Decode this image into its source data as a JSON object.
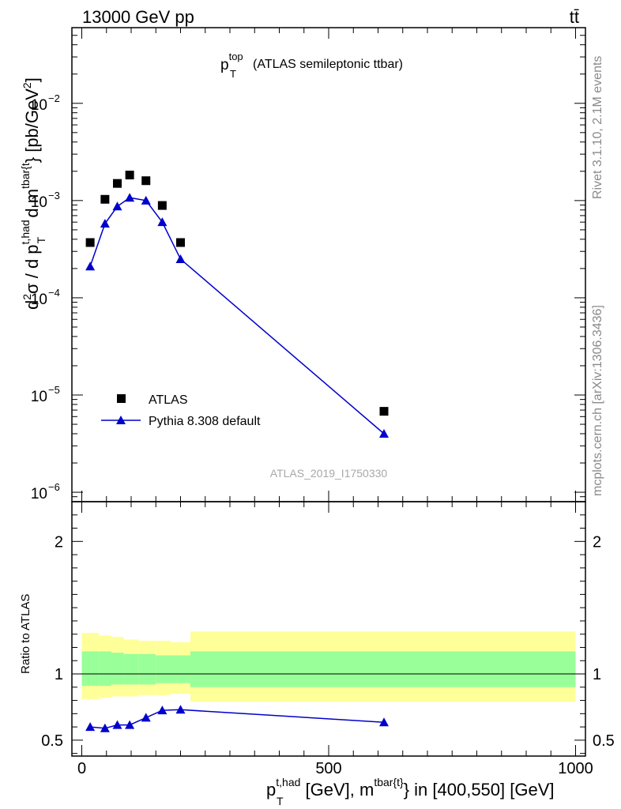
{
  "header": {
    "energy_label": "13000 GeV pp",
    "process_label": "tt̄"
  },
  "side_labels": {
    "rivet": "Rivet 3.1.10,  2.1M events",
    "mcplots": "mcplots.cern.ch [arXiv:1306.3436]"
  },
  "analysis_id": "ATLAS_2019_I1750330",
  "chart_data": [
    {
      "type": "scatter",
      "panel": "main",
      "title": {
        "main": "p",
        "sup": "top",
        "sub": "T",
        "rest": "(ATLAS semileptonic ttbar)"
      },
      "ylabel": "d²σ / d p_T^{t,had} d m^{tbar{t}} [pb/GeV²]",
      "yscale": "log",
      "xlim": [
        -20,
        1020
      ],
      "ylim": [
        8e-07,
        0.06
      ],
      "ytick_labels": [
        {
          "value": 1e-06,
          "mant": "10",
          "exp": "−6"
        },
        {
          "value": 1e-05,
          "mant": "10",
          "exp": "−5"
        },
        {
          "value": 0.0001,
          "mant": "10",
          "exp": "−4"
        },
        {
          "value": 0.001,
          "mant": "10",
          "exp": "−3"
        },
        {
          "value": 0.01,
          "mant": "10",
          "exp": "−2"
        }
      ],
      "legend_position": "bottom-left",
      "series": [
        {
          "name": "ATLAS",
          "marker": "square",
          "color": "#000000",
          "x": [
            17,
            47,
            72,
            97,
            130,
            163,
            200,
            612
          ],
          "y": [
            0.00037,
            0.00103,
            0.0015,
            0.00183,
            0.0016,
            0.00089,
            0.00037,
            6.8e-06
          ]
        },
        {
          "name": "Pythia 8.308 default",
          "marker": "triangle",
          "color": "#0000cc",
          "x": [
            17,
            47,
            72,
            97,
            130,
            163,
            200,
            612
          ],
          "y": [
            0.00021,
            0.00058,
            0.00087,
            0.00107,
            0.001,
            0.0006,
            0.00025,
            4e-06
          ]
        }
      ]
    },
    {
      "type": "line",
      "panel": "ratio",
      "ylabel": "Ratio to ATLAS",
      "xlim": [
        -20,
        1020
      ],
      "ylim": [
        0.38,
        2.3
      ],
      "yticks": [
        0.5,
        1,
        2
      ],
      "ytick_labels": [
        "0.5",
        "1",
        "2"
      ],
      "xticks": [
        0,
        500,
        1000
      ],
      "xtick_labels": [
        "0",
        "500",
        "1000"
      ],
      "xlabel": {
        "p": "p",
        "sup1": "t,had",
        "sub1": "T",
        "mid": " [GeV], m",
        "sup2": "tbar{t}",
        "rest": " in [400,550] [GeV]"
      },
      "reference_line": 1,
      "bands": {
        "x_edges": [
          0,
          35,
          60,
          85,
          115,
          150,
          180,
          220,
          1000
        ],
        "yellow_lo": [
          0.81,
          0.82,
          0.83,
          0.83,
          0.84,
          0.84,
          0.85,
          0.79
        ],
        "yellow_hi": [
          1.31,
          1.29,
          1.28,
          1.26,
          1.25,
          1.25,
          1.24,
          1.32
        ],
        "green_lo": [
          0.91,
          0.91,
          0.92,
          0.92,
          0.92,
          0.93,
          0.93,
          0.9
        ],
        "green_hi": [
          1.17,
          1.17,
          1.16,
          1.15,
          1.15,
          1.14,
          1.14,
          1.17
        ],
        "yellow_color": "#ffff99",
        "green_color": "#99ff99"
      },
      "series": [
        {
          "name": "Pythia 8.308 default",
          "color": "#0000cc",
          "x": [
            17,
            47,
            72,
            97,
            130,
            163,
            200,
            612
          ],
          "y": [
            0.6,
            0.59,
            0.615,
            0.615,
            0.67,
            0.725,
            0.73,
            0.635
          ]
        }
      ]
    }
  ]
}
